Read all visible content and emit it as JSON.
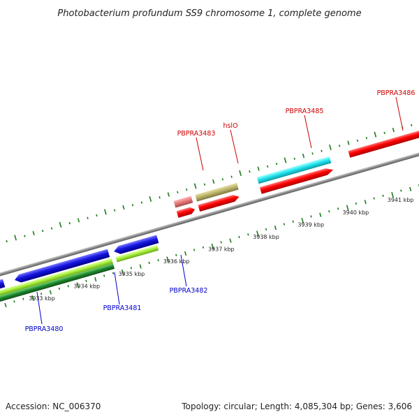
{
  "title": "Photobacterium profundum SS9 chromosome 1, complete genome",
  "footer": {
    "accession": "Accession: NC_006370",
    "summary": "Topology: circular; Length: 4,085,304 bp; Genes: 3,606"
  },
  "ticks": [
    "3933 kbp",
    "3934 kbp",
    "3935 kbp",
    "3936 kbp",
    "3937 kbp",
    "3938 kbp",
    "3939 kbp",
    "3940 kbp",
    "3941 kbp"
  ],
  "genes_top": [
    {
      "name": "PBPRA3483",
      "color": "#cc0000"
    },
    {
      "name": "hslO",
      "color": "#cc0000"
    },
    {
      "name": "PBPRA3485",
      "color": "#cc0000"
    },
    {
      "name": "PBPRA3486",
      "color": "#cc0000"
    }
  ],
  "genes_bottom": [
    {
      "name": "PBPRA3480",
      "color": "#0000cc"
    },
    {
      "name": "PBPRA3481",
      "color": "#0000cc"
    },
    {
      "name": "PBPRA3482",
      "color": "#0000cc"
    }
  ],
  "colors": {
    "backbone": "#8c8c8c",
    "tick": "#1a7a1a",
    "forward": "#ee0000",
    "reverse": "#1010dd",
    "cyan": "#22e5f0",
    "olive": "#bdb56c",
    "pink": "#e77b7b",
    "lime": "#a8f03c",
    "darkgreen": "#1f8a2c"
  }
}
